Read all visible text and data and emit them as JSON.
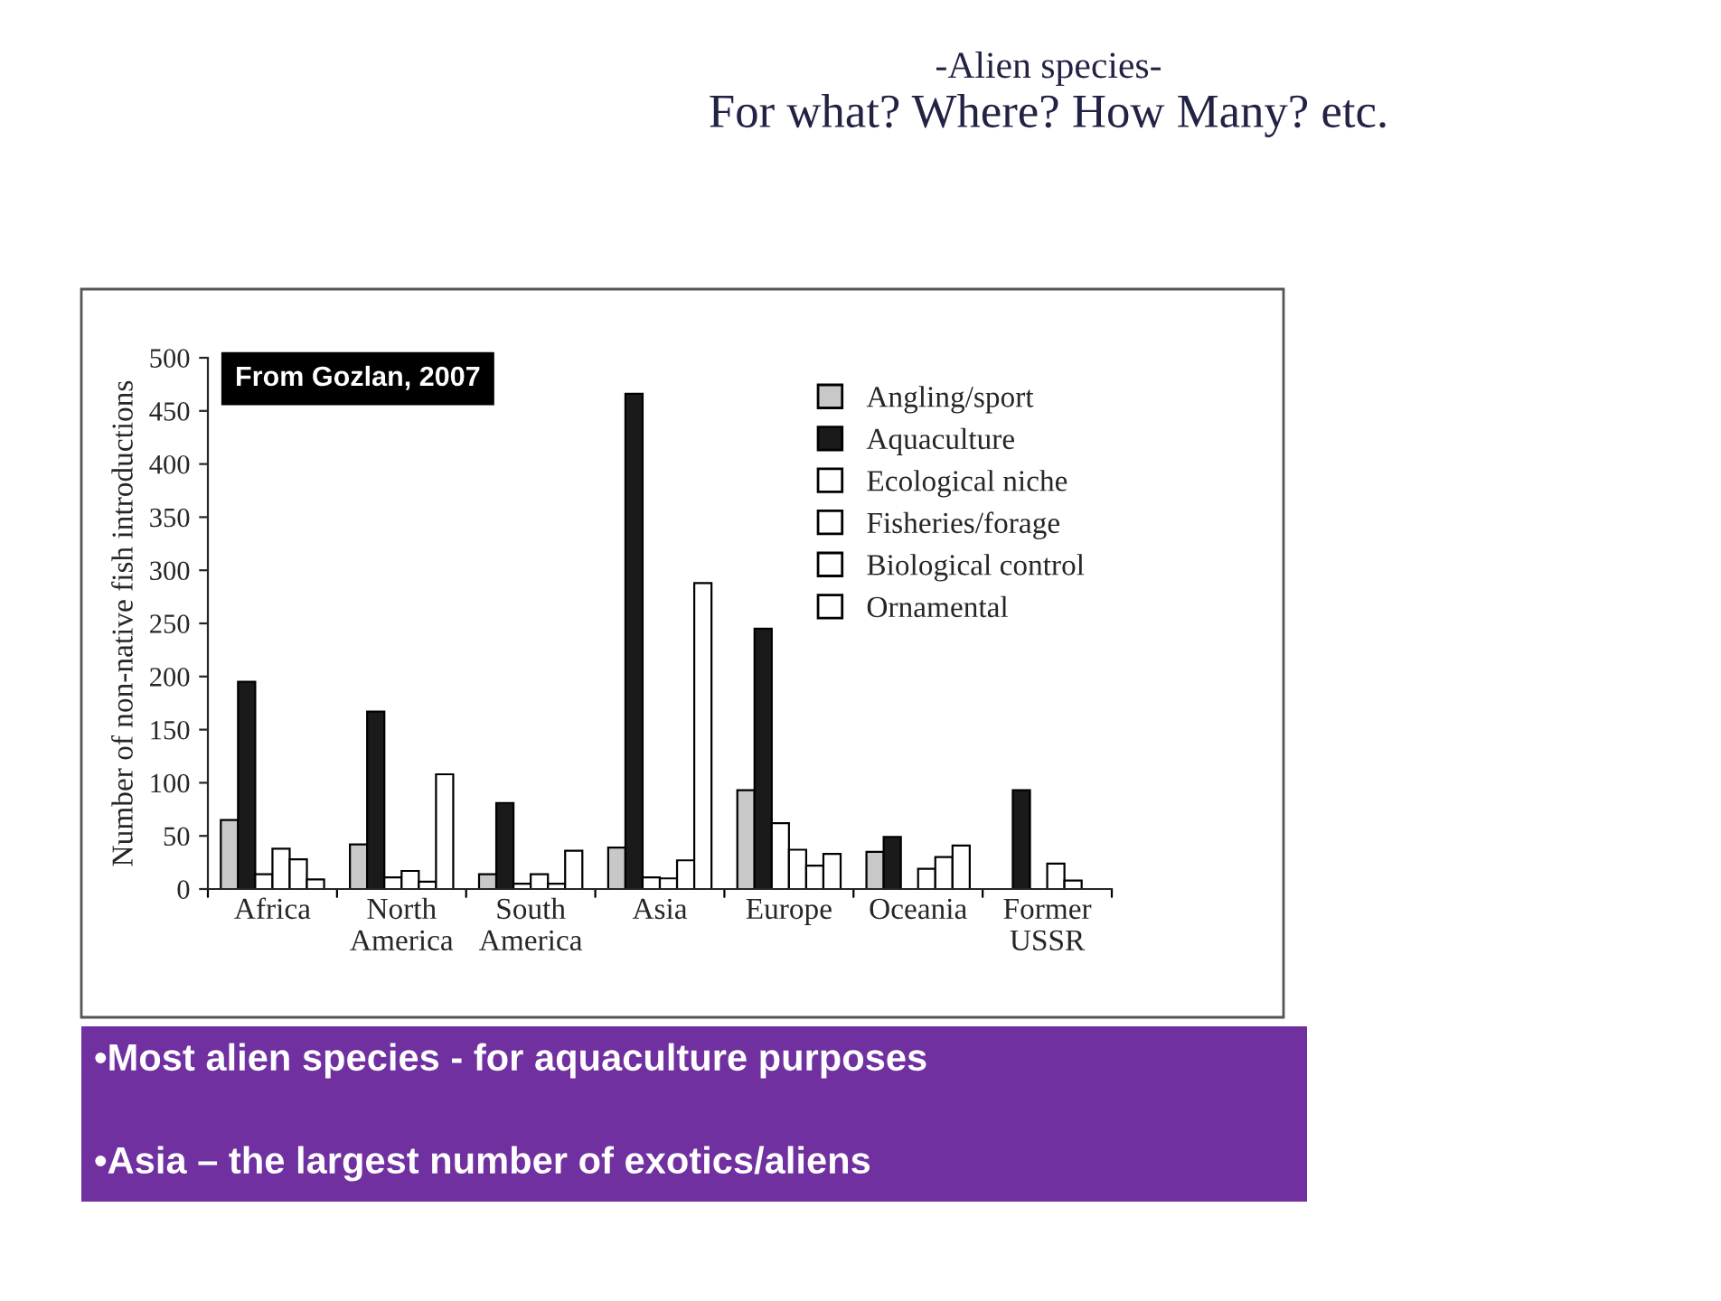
{
  "chart_data": {
    "type": "bar",
    "title": "-Alien species-",
    "subtitle": "For what? Where? How Many? etc.",
    "ylabel": "Number of non-native fish introductions",
    "categories": [
      "Africa",
      "North\nAmerica",
      "South\nAmerica",
      "Asia",
      "Europe",
      "Oceania",
      "Former\nUSSR"
    ],
    "series": [
      {
        "name": "Angling/sport",
        "color": "#c8c8c8",
        "values": [
          65,
          42,
          14,
          39,
          93,
          35,
          null
        ]
      },
      {
        "name": "Aquaculture",
        "color": "#1a1a1a",
        "values": [
          195,
          167,
          81,
          466,
          245,
          49,
          93
        ]
      },
      {
        "name": "Ecological niche",
        "color": "#ffffff",
        "values": [
          14,
          11,
          5,
          11,
          62,
          null,
          null
        ]
      },
      {
        "name": "Fisheries/forage",
        "color": "#ffffff",
        "values": [
          38,
          17,
          14,
          10,
          37,
          19,
          24
        ]
      },
      {
        "name": "Biological control",
        "color": "#ffffff",
        "values": [
          28,
          7,
          5,
          27,
          22,
          30,
          8
        ]
      },
      {
        "name": "Ornamental",
        "color": "#ffffff",
        "values": [
          9,
          108,
          36,
          288,
          33,
          41,
          null
        ]
      }
    ],
    "ylim": [
      0,
      500
    ],
    "yticks": [
      0,
      50,
      100,
      150,
      200,
      250,
      300,
      350,
      400,
      450,
      500
    ],
    "grid": false,
    "legend": "top right",
    "annotations": [
      "From Gozlan, 2007",
      "•Most alien species - for aquaculture purposes",
      "•Asia – the largest number of exotics/aliens"
    ]
  }
}
